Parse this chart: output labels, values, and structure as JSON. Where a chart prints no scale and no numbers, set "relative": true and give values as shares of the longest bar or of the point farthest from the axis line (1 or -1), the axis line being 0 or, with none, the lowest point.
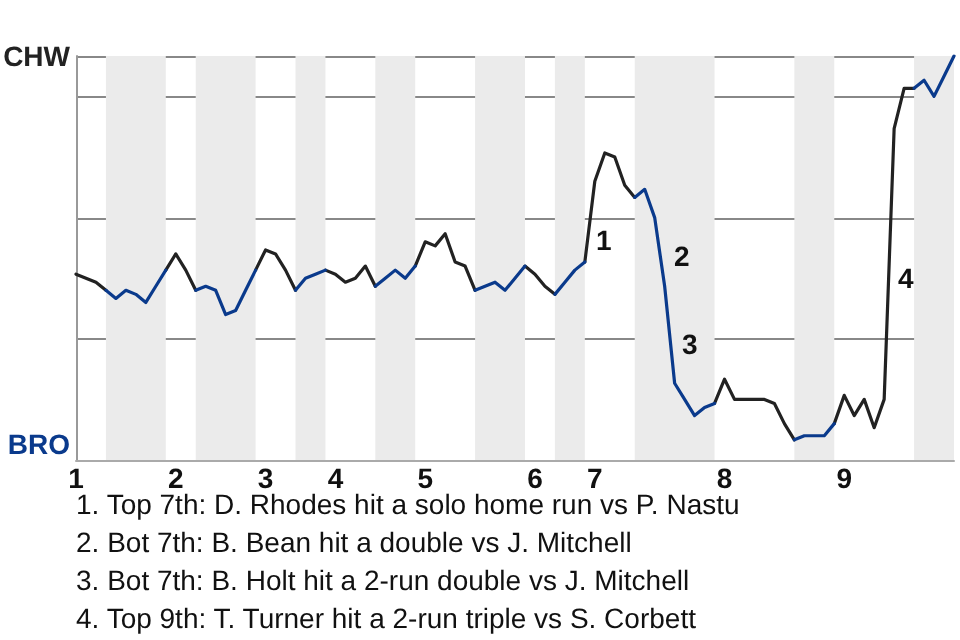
{
  "chart_data": {
    "type": "line",
    "relative": true,
    "grid": "y",
    "marker": "none",
    "line_style": "solid",
    "categories": [
      "1",
      null,
      null,
      null,
      null,
      null,
      null,
      null,
      null,
      null,
      "2",
      null,
      null,
      null,
      null,
      null,
      null,
      null,
      null,
      "3",
      null,
      null,
      null,
      null,
      null,
      null,
      "4",
      null,
      null,
      null,
      null,
      null,
      null,
      null,
      null,
      "5",
      null,
      null,
      null,
      null,
      null,
      null,
      null,
      null,
      null,
      null,
      "6",
      null,
      null,
      null,
      null,
      null,
      "7",
      null,
      null,
      null,
      null,
      null,
      null,
      null,
      null,
      null,
      null,
      null,
      null,
      "8",
      null,
      null,
      null,
      null,
      null,
      null,
      null,
      null,
      null,
      null,
      null,
      "9",
      null,
      null,
      null,
      null,
      null,
      null,
      null,
      null,
      null,
      null,
      null
    ],
    "series": [
      {
        "color": "#222222",
        "values": [
          0.46,
          0.45,
          0.44,
          0.42,
          null,
          null,
          null,
          null,
          null,
          0.47,
          0.51,
          0.47,
          0.42,
          null,
          null,
          null,
          null,
          null,
          0.47,
          0.52,
          0.51,
          0.47,
          0.42,
          null,
          null,
          0.47,
          0.46,
          0.44,
          0.45,
          0.48,
          0.43,
          null,
          null,
          null,
          0.48,
          0.54,
          0.53,
          0.56,
          0.49,
          0.48,
          0.42,
          null,
          null,
          null,
          null,
          0.48,
          0.46,
          0.43,
          0.41,
          null,
          null,
          0.49,
          0.69,
          0.76,
          0.75,
          0.68,
          0.65,
          null,
          null,
          null,
          null,
          null,
          null,
          null,
          0.14,
          0.2,
          0.15,
          0.15,
          0.15,
          0.15,
          0.14,
          0.09,
          0.05,
          null,
          null,
          null,
          0.09,
          0.16,
          0.11,
          0.15,
          0.08,
          0.15,
          0.82,
          0.92,
          0.92,
          null,
          null,
          null,
          null
        ]
      },
      {
        "color": "#0a3a8c",
        "values": [
          null,
          null,
          null,
          0.42,
          0.4,
          0.42,
          0.41,
          0.39,
          0.43,
          0.47,
          null,
          null,
          0.42,
          0.43,
          0.42,
          0.36,
          0.37,
          0.42,
          0.47,
          null,
          null,
          null,
          0.42,
          0.45,
          0.46,
          0.47,
          null,
          null,
          null,
          null,
          0.43,
          0.45,
          0.47,
          0.45,
          0.48,
          null,
          null,
          null,
          null,
          null,
          0.42,
          0.43,
          0.44,
          0.42,
          0.45,
          0.48,
          null,
          null,
          0.41,
          0.44,
          0.47,
          0.49,
          null,
          null,
          null,
          null,
          0.65,
          0.67,
          0.6,
          0.43,
          0.19,
          0.15,
          0.11,
          0.13,
          0.14,
          null,
          null,
          null,
          null,
          null,
          null,
          null,
          0.05,
          0.06,
          0.06,
          0.06,
          0.09,
          null,
          null,
          null,
          null,
          null,
          null,
          null,
          0.92,
          0.94,
          0.9,
          0.95,
          1
        ]
      }
    ],
    "annotations": [
      "CHW",
      "BRO",
      "1",
      "2",
      "3",
      "4",
      "1. Top 7th: D. Rhodes hit a solo home run vs P. Nastu",
      "2. Bot 7th: B. Bean hit a double vs J. Mitchell",
      "3. Bot 7th: B. Holt hit a 2-run double vs J. Mitchell",
      "4. Top 9th: T. Turner hit a 2-run triple vs S. Corbett"
    ]
  }
}
